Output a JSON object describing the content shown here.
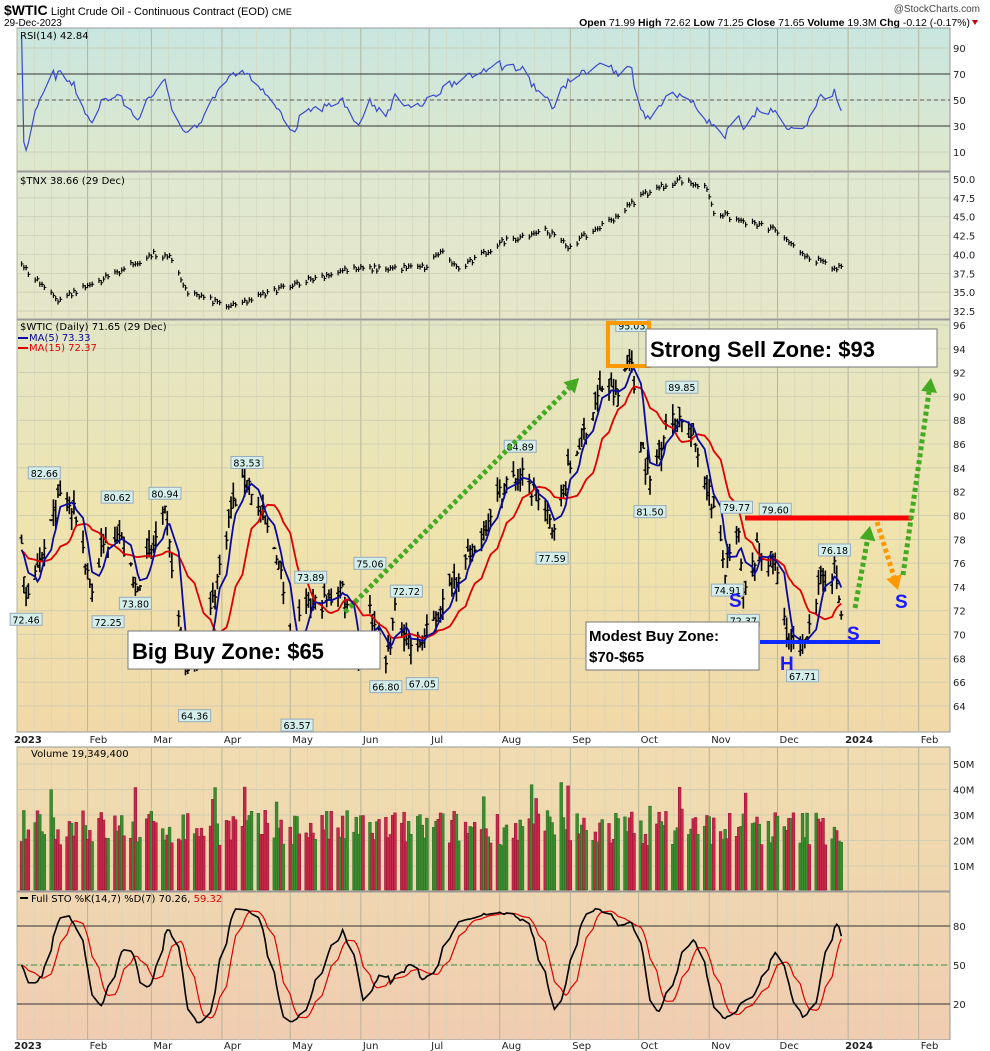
{
  "header": {
    "symbol": "$WTIC",
    "name": "Light Crude Oil - Continuous Contract (EOD)",
    "exchange": "CME",
    "date": "29-Dec-2023",
    "watermark": "@StockCharts.com",
    "open_label": "Open",
    "open": "71.99",
    "high_label": "High",
    "high": "72.62",
    "low_label": "Low",
    "low": "71.25",
    "close_label": "Close",
    "close": "71.65",
    "volume_label": "Volume",
    "volume": "19.3M",
    "chg_label": "Chg",
    "chg": "-0.12 (-0.17%)"
  },
  "legends": {
    "rsi": "RSI(14) 42.84",
    "tnx": "$TNX 38.66 (29 Dec)",
    "price": "$WTIC (Daily) 71.65 (29 Dec)",
    "ma5": "MA(5) 73.33",
    "ma15": "MA(15) 72.37",
    "volume": "Volume 19,349,400",
    "sto_main": "Full STO %K(14,7) %D(7) 70.26,",
    "sto_d": "59.32"
  },
  "colors": {
    "ma5": "#0a0aa0",
    "ma15": "#e00000",
    "up_volume": "#3c8c30",
    "down_volume": "#c8284a",
    "rsi_line": "#3a4ad0",
    "sto_k": "#000000",
    "sto_d": "#e00000",
    "green_arrow": "#44aa22",
    "orange_arrow": "#ff9900",
    "resistance": "#ff0000",
    "support": "#0a2aff"
  },
  "annotations": {
    "sell_zone": "Strong Sell Zone: $93",
    "big_buy_zone": "Big Buy Zone: $65",
    "modest_buy_line1": "Modest Buy Zone:",
    "modest_buy_line2": "$70-$65",
    "shoulder": "S",
    "head": "H"
  },
  "chart_data": [
    {
      "type": "line",
      "panel": "RSI(14)",
      "ylim": [
        0,
        100
      ],
      "ticks": [
        "90",
        "70",
        "50",
        "30",
        "10"
      ],
      "reference_lines": [
        70,
        50,
        30
      ],
      "last": 42.84
    },
    {
      "type": "bar-ohlc",
      "panel": "$TNX",
      "ylim": [
        32,
        51
      ],
      "ticks": [
        "50.0",
        "47.5",
        "45.0",
        "42.5",
        "40.0",
        "37.5",
        "35.0",
        "32.5"
      ],
      "x": [
        "2023-01-03",
        "2023-01-19",
        "2023-02-06",
        "2023-03-02",
        "2023-03-09",
        "2023-03-17",
        "2023-04-05",
        "2023-05-01",
        "2023-05-26",
        "2023-06-30",
        "2023-07-06",
        "2023-07-14",
        "2023-08-03",
        "2023-08-21",
        "2023-08-31",
        "2023-09-21",
        "2023-10-03",
        "2023-10-19",
        "2023-10-31",
        "2023-11-03",
        "2023-11-14",
        "2023-11-30",
        "2023-12-06",
        "2023-12-13",
        "2023-12-27",
        "2023-12-29"
      ],
      "y": [
        38.5,
        34.0,
        36.5,
        40.0,
        39.5,
        35.0,
        33.0,
        36.0,
        38.0,
        38.3,
        40.5,
        38.0,
        41.8,
        43.3,
        41.0,
        45.0,
        48.0,
        49.9,
        48.8,
        45.7,
        44.5,
        43.3,
        41.3,
        40.0,
        37.9,
        38.66
      ]
    },
    {
      "type": "bar-ohlc",
      "panel": "$WTIC (Daily)",
      "ylim": [
        62,
        96
      ],
      "ticks": [
        "96",
        "94",
        "92",
        "90",
        "88",
        "86",
        "84",
        "82",
        "80",
        "78",
        "76",
        "74",
        "72",
        "70",
        "68",
        "66",
        "64"
      ],
      "x_ticks": [
        "2023",
        "Feb",
        "Mar",
        "Apr",
        "May",
        "Jun",
        "Jul",
        "Aug",
        "Sep",
        "Oct",
        "Nov",
        "Dec",
        "2024",
        "Feb"
      ],
      "x": [
        "2023-01-03",
        "2023-01-05",
        "2023-01-10",
        "2023-01-17",
        "2023-01-20",
        "2023-01-27",
        "2023-02-03",
        "2023-02-07",
        "2023-02-14",
        "2023-02-22",
        "2023-03-01",
        "2023-03-07",
        "2023-03-10",
        "2023-03-15",
        "2023-03-17",
        "2023-03-20",
        "2023-03-24",
        "2023-03-31",
        "2023-04-05",
        "2023-04-12",
        "2023-04-18",
        "2023-04-25",
        "2023-05-03",
        "2023-05-05",
        "2023-05-10",
        "2023-05-17",
        "2023-05-24",
        "2023-05-31",
        "2023-06-05",
        "2023-06-12",
        "2023-06-16",
        "2023-06-23",
        "2023-06-28",
        "2023-07-05",
        "2023-07-14",
        "2023-07-21",
        "2023-07-28",
        "2023-08-04",
        "2023-08-11",
        "2023-08-18",
        "2023-08-24",
        "2023-08-31",
        "2023-09-08",
        "2023-09-15",
        "2023-09-22",
        "2023-09-27",
        "2023-09-29",
        "2023-10-04",
        "2023-10-06",
        "2023-10-13",
        "2023-10-20",
        "2023-10-27",
        "2023-11-03",
        "2023-11-08",
        "2023-11-14",
        "2023-11-16",
        "2023-11-22",
        "2023-11-30",
        "2023-12-06",
        "2023-12-12",
        "2023-12-15",
        "2023-12-20",
        "2023-12-26",
        "2023-12-29"
      ],
      "close": [
        77.0,
        73.5,
        75.0,
        80.0,
        81.5,
        80.0,
        73.5,
        77.0,
        79.0,
        74.0,
        77.0,
        80.0,
        76.0,
        68.0,
        66.7,
        67.5,
        69.0,
        75.7,
        80.6,
        83.3,
        80.0,
        77.0,
        68.5,
        71.0,
        72.5,
        72.8,
        74.0,
        68.0,
        72.0,
        67.5,
        71.8,
        69.2,
        69.5,
        71.8,
        75.4,
        77.0,
        80.5,
        82.8,
        83.2,
        81.3,
        79.0,
        83.6,
        87.5,
        90.8,
        90.0,
        93.7,
        90.8,
        84.2,
        82.8,
        87.7,
        88.3,
        85.5,
        80.5,
        75.3,
        78.3,
        73.0,
        77.0,
        75.9,
        69.4,
        68.6,
        71.4,
        74.2,
        75.6,
        71.65
      ],
      "price_labels": [
        {
          "date": "2023-01-05",
          "value": "72.46",
          "pos": "below"
        },
        {
          "date": "2023-01-13",
          "value": "82.66",
          "pos": "above"
        },
        {
          "date": "2023-02-10",
          "value": "72.25",
          "pos": "below"
        },
        {
          "date": "2023-02-14",
          "value": "80.62",
          "pos": "above"
        },
        {
          "date": "2023-02-22",
          "value": "73.80",
          "pos": "below"
        },
        {
          "date": "2023-03-07",
          "value": "80.94",
          "pos": "above"
        },
        {
          "date": "2023-03-20",
          "value": "64.36",
          "pos": "below"
        },
        {
          "date": "2023-04-12",
          "value": "83.53",
          "pos": "above"
        },
        {
          "date": "2023-05-04",
          "value": "63.57",
          "pos": "below"
        },
        {
          "date": "2023-05-10",
          "value": "73.89",
          "pos": "above"
        },
        {
          "date": "2023-06-05",
          "value": "75.06",
          "pos": "above"
        },
        {
          "date": "2023-06-12",
          "value": "66.80",
          "pos": "below"
        },
        {
          "date": "2023-06-21",
          "value": "72.72",
          "pos": "above"
        },
        {
          "date": "2023-06-28",
          "value": "67.05",
          "pos": "below"
        },
        {
          "date": "2023-08-10",
          "value": "84.89",
          "pos": "above"
        },
        {
          "date": "2023-08-24",
          "value": "77.59",
          "pos": "below"
        },
        {
          "date": "2023-09-28",
          "value": "95.03",
          "pos": "above"
        },
        {
          "date": "2023-10-06",
          "value": "81.50",
          "pos": "below"
        },
        {
          "date": "2023-10-20",
          "value": "89.85",
          "pos": "above"
        },
        {
          "date": "2023-11-09",
          "value": "74.91",
          "pos": "below"
        },
        {
          "date": "2023-11-13",
          "value": "79.77",
          "pos": "above"
        },
        {
          "date": "2023-11-16",
          "value": "72.37",
          "pos": "below"
        },
        {
          "date": "2023-11-30",
          "value": "79.60",
          "pos": "above"
        },
        {
          "date": "2023-12-12",
          "value": "67.71",
          "pos": "below"
        },
        {
          "date": "2023-12-26",
          "value": "76.18",
          "pos": "above"
        }
      ],
      "series": [
        {
          "name": "MA(5)",
          "last": 73.33
        },
        {
          "name": "MA(15)",
          "last": 72.37
        }
      ],
      "resistance_level": 80,
      "support_level": 69.5
    },
    {
      "type": "bar",
      "panel": "Volume",
      "unit": "M",
      "ticks": [
        "50M",
        "40M",
        "30M",
        "20M",
        "10M"
      ],
      "last": 19349400
    },
    {
      "type": "line",
      "panel": "Full STO %K(14,7) %D(7)",
      "ylim": [
        0,
        105
      ],
      "ticks": [
        "80",
        "50",
        "20"
      ],
      "reference_lines": [
        80,
        50,
        20
      ],
      "series": [
        {
          "name": "%K",
          "last": 70.26
        },
        {
          "name": "%D",
          "last": 59.32
        }
      ]
    }
  ]
}
